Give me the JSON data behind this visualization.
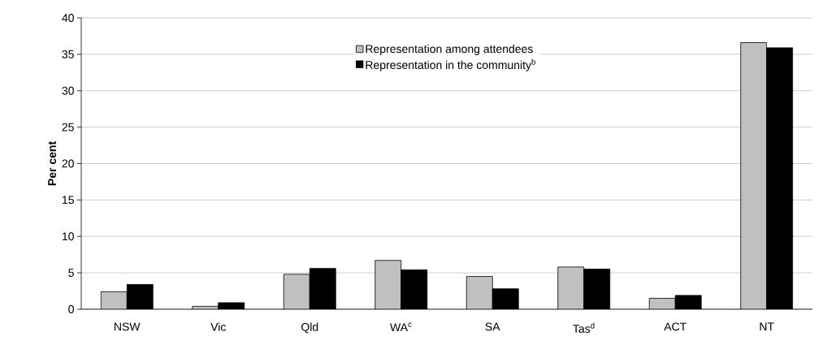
{
  "chart_data": {
    "type": "bar",
    "ylabel": "**Per cent**",
    "categories": [
      "NSW",
      "Vic",
      "Qld",
      "WA$^{c}$",
      "SA",
      "Tas$^{d}$",
      "ACT",
      "NT"
    ],
    "series": [
      {
        "name": "Representation among attendees",
        "color": "#c0c0c0",
        "values": [
          2.4,
          0.4,
          4.8,
          6.7,
          4.5,
          5.8,
          1.5,
          36.6
        ]
      },
      {
        "name": "Representation in the community$^{b}$",
        "color": "#000000",
        "values": [
          3.4,
          0.9,
          5.6,
          5.4,
          2.8,
          5.5,
          1.9,
          35.9
        ]
      }
    ],
    "ylim": [
      0,
      40
    ],
    "yticks": [
      0,
      5,
      10,
      15,
      20,
      25,
      30,
      35,
      40
    ],
    "grid": "y",
    "legend": "top"
  }
}
